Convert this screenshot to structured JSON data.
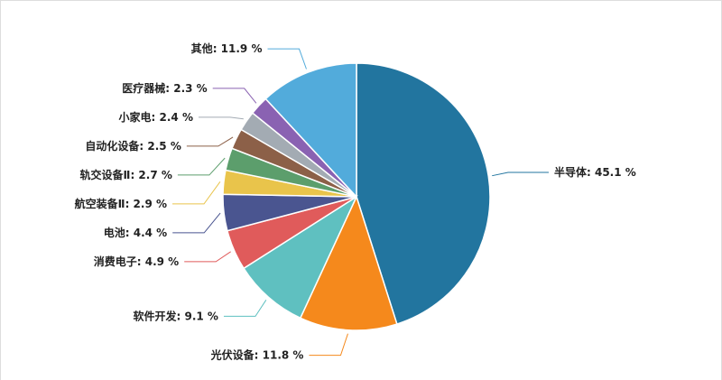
{
  "chart_data": {
    "type": "pie",
    "categories": [
      "半导体",
      "光伏设备",
      "软件开发",
      "消费电子",
      "电池",
      "航空装备Ⅱ",
      "轨交设备Ⅱ",
      "自动化设备",
      "小家电",
      "医疗器械",
      "其他"
    ],
    "values": [
      45.1,
      11.8,
      9.1,
      4.9,
      4.4,
      2.9,
      2.7,
      2.5,
      2.4,
      2.3,
      11.9
    ],
    "value_labels": [
      "45.1 %",
      "11.8 %",
      "9.1 %",
      "4.9 %",
      "4.4 %",
      "2.9 %",
      "2.7 %",
      "2.5 %",
      "2.4 %",
      "2.3 %",
      "11.9 %"
    ],
    "label_separator": ": ",
    "colors": [
      "#22759f",
      "#f5891c",
      "#5fc0c0",
      "#e05b5b",
      "#4a5590",
      "#e9c44b",
      "#5c9e6c",
      "#8c6048",
      "#a3abb3",
      "#8a62b2",
      "#52abdb"
    ]
  }
}
